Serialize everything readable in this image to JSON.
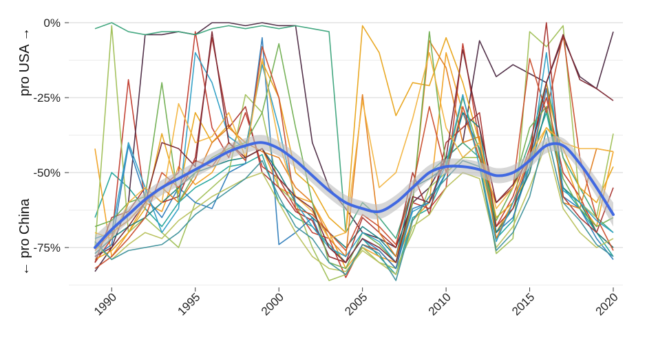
{
  "chart_data": {
    "type": "line",
    "title": "",
    "xlabel": "",
    "ylabel_top": "pro USA →",
    "ylabel_bottom": "← pro China",
    "xlim": [
      1989,
      2020
    ],
    "ylim": [
      -87.5,
      0
    ],
    "x_ticks": [
      1990,
      1995,
      2000,
      2005,
      2010,
      2015,
      2020
    ],
    "x_tick_labels": [
      "1990",
      "1995",
      "2000",
      "2005",
      "2010",
      "2015",
      "2020"
    ],
    "y_ticks": [
      0,
      -25,
      -50,
      -75
    ],
    "y_tick_labels": [
      "0%",
      "-25%",
      "-50%",
      "-75%"
    ],
    "y_minor_grid": [
      -12.5,
      -37.5,
      -62.5,
      -87.5
    ],
    "grid": true,
    "x": [
      1989,
      1990,
      1991,
      1992,
      1993,
      1994,
      1995,
      1996,
      1997,
      1998,
      1999,
      2000,
      2001,
      2002,
      2003,
      2004,
      2005,
      2006,
      2007,
      2008,
      2009,
      2010,
      2011,
      2012,
      2013,
      2014,
      2015,
      2016,
      2017,
      2018,
      2019,
      2020
    ],
    "trend": {
      "name": "smoothed trend",
      "color": "#4169e1",
      "band_color": "#bdbdbd",
      "values": [
        -75,
        -69,
        -64,
        -59,
        -55,
        -52,
        -49,
        -46,
        -43,
        -41,
        -40,
        -42,
        -46,
        -51,
        -56,
        -60,
        -62,
        -63,
        -60,
        -55,
        -50,
        -48,
        -48,
        -49,
        -51,
        -50,
        -46,
        -41,
        -41,
        -47,
        -55,
        -64
      ],
      "ci_halfwidth": [
        4,
        3,
        2.5,
        2.5,
        2.5,
        2.5,
        2.5,
        2.5,
        2.5,
        2.5,
        2.5,
        2.5,
        2.5,
        2.5,
        2.5,
        2.5,
        2.5,
        2.5,
        2.5,
        2.5,
        2.5,
        2.5,
        2.5,
        2.5,
        2.5,
        2.5,
        2.5,
        2.5,
        2.5,
        2.5,
        3,
        4
      ]
    },
    "series": [
      {
        "color": "#1fa39a",
        "values": [
          -65,
          -50,
          -55,
          -62,
          -68,
          -60,
          -55,
          -52,
          -48,
          -47,
          -44,
          -60,
          -65,
          -68,
          -74,
          -80,
          -72,
          -78,
          -84,
          -65,
          -62,
          -50,
          -45,
          -40,
          -72,
          -66,
          -45,
          -30,
          -55,
          -62,
          -70,
          -78
        ]
      },
      {
        "color": "#f0a020",
        "values": [
          -42,
          -78,
          -70,
          -60,
          -63,
          -48,
          -54,
          -50,
          -40,
          -45,
          -42,
          -55,
          -58,
          -60,
          -70,
          -82,
          -75,
          -78,
          -80,
          -66,
          -60,
          -10,
          -30,
          -45,
          -70,
          -60,
          -50,
          -22,
          -45,
          -60,
          -68,
          -43
        ]
      },
      {
        "color": "#c0392b",
        "values": [
          -80,
          -72,
          -19,
          -60,
          -55,
          -50,
          -3,
          -35,
          -45,
          -30,
          -48,
          -52,
          -62,
          -70,
          -72,
          -85,
          -74,
          -76,
          -82,
          -60,
          -62,
          -55,
          -7,
          -40,
          -68,
          -58,
          -42,
          -25,
          -50,
          -58,
          -70,
          -75
        ]
      },
      {
        "color": "#4a2740",
        "values": [
          -83,
          -75,
          -60,
          -4,
          -4,
          -3,
          -4,
          0,
          0,
          -1,
          0,
          -1,
          -1,
          -40,
          -55,
          -62,
          -70,
          -72,
          -75,
          -60,
          -55,
          -45,
          -40,
          -6,
          -18,
          -14,
          -17,
          -20,
          -5,
          -18,
          -22,
          -3
        ]
      },
      {
        "color": "#3aa37a",
        "values": [
          -2,
          0,
          -3,
          -4,
          -3,
          -3,
          -4,
          -2,
          -1,
          -2,
          -1,
          -2,
          -1,
          -2,
          -3,
          -70,
          -60,
          -65,
          -72,
          -55,
          -50,
          -45,
          -40,
          -45,
          -60,
          -55,
          -40,
          -20,
          -45,
          -55,
          -65,
          -70
        ]
      },
      {
        "color": "#9fbf55",
        "values": [
          -75,
          -1,
          -70,
          -65,
          -70,
          -75,
          -60,
          -55,
          -50,
          -24,
          -30,
          -55,
          -60,
          -75,
          -86,
          -84,
          -75,
          -80,
          -82,
          -70,
          -55,
          -50,
          -45,
          -45,
          -77,
          -72,
          -3,
          -8,
          -1,
          -60,
          -65,
          -37
        ]
      },
      {
        "color": "#2b7bb9",
        "values": [
          -78,
          -74,
          -41,
          -58,
          -65,
          -55,
          -60,
          -62,
          -50,
          -47,
          -5,
          -74,
          -70,
          -65,
          -78,
          -80,
          -72,
          -76,
          -82,
          -62,
          -60,
          -50,
          -30,
          -42,
          -70,
          -65,
          -48,
          -22,
          -58,
          -62,
          -72,
          -79
        ]
      },
      {
        "color": "#e8a317",
        "values": [
          -79,
          -76,
          -70,
          -62,
          -37,
          -57,
          -30,
          -40,
          -34,
          -42,
          -13,
          -25,
          -50,
          -55,
          -65,
          -70,
          -1,
          -10,
          -31,
          -20,
          -21,
          -5,
          -20,
          -40,
          -65,
          -60,
          -48,
          -35,
          -42,
          -55,
          -60,
          -48
        ]
      },
      {
        "color": "#17807e",
        "values": [
          -77,
          -72,
          -68,
          -65,
          -60,
          -55,
          -50,
          -48,
          -46,
          -45,
          -42,
          -50,
          -60,
          -65,
          -70,
          -75,
          -68,
          -72,
          -78,
          -55,
          -52,
          -48,
          -30,
          -35,
          -70,
          -62,
          -50,
          -28,
          -55,
          -60,
          -70,
          -75
        ]
      },
      {
        "color": "#a8322d",
        "values": [
          -80,
          -65,
          -63,
          -55,
          -60,
          -58,
          -45,
          -5,
          -35,
          -28,
          -50,
          -55,
          -63,
          -66,
          -78,
          -80,
          -65,
          -70,
          -75,
          -50,
          -64,
          -40,
          -35,
          -30,
          -68,
          -62,
          -45,
          0,
          -58,
          -65,
          -70,
          -55
        ]
      },
      {
        "color": "#e07b1a",
        "values": [
          -76,
          -70,
          -66,
          -60,
          -55,
          -60,
          -52,
          -40,
          -35,
          -40,
          -43,
          -45,
          -55,
          -60,
          -72,
          -78,
          -24,
          -70,
          -78,
          -60,
          -6,
          -15,
          -40,
          -38,
          -72,
          -60,
          -44,
          -20,
          -60,
          -62,
          -42,
          -43
        ]
      },
      {
        "color": "#6fae4f",
        "values": [
          -68,
          -66,
          -60,
          -58,
          -20,
          -60,
          -50,
          -45,
          -42,
          -40,
          -30,
          -7,
          -35,
          -60,
          -80,
          -82,
          -70,
          -74,
          -80,
          -60,
          -3,
          -48,
          -25,
          -43,
          -66,
          -55,
          -35,
          -28,
          -52,
          -62,
          -68,
          -65
        ]
      },
      {
        "color": "#c94b2a",
        "values": [
          -82,
          -78,
          -72,
          -65,
          -50,
          -55,
          -46,
          -48,
          -40,
          -46,
          -8,
          -25,
          -62,
          -64,
          -70,
          -76,
          -64,
          -68,
          -74,
          -55,
          -28,
          -50,
          -28,
          -45,
          -60,
          -55,
          -12,
          -30,
          -4,
          -45,
          -65,
          -76
        ]
      },
      {
        "color": "#2a9dc4",
        "values": [
          -72,
          -70,
          -40,
          -55,
          -70,
          -62,
          -10,
          -20,
          -38,
          -42,
          -14,
          -35,
          -60,
          -68,
          -75,
          -78,
          -70,
          -73,
          -80,
          -63,
          -60,
          -47,
          -24,
          -48,
          -73,
          -60,
          -48,
          -10,
          -56,
          -60,
          -66,
          -70
        ]
      },
      {
        "color": "#f2b33d",
        "values": [
          -70,
          -72,
          -60,
          -55,
          -60,
          -27,
          -40,
          -38,
          -30,
          -45,
          -12,
          -40,
          -58,
          -63,
          -72,
          -70,
          -26,
          -55,
          -50,
          -32,
          -10,
          -35,
          -45,
          -40,
          -62,
          -55,
          -44,
          -35,
          -40,
          -42,
          -42,
          -43
        ]
      },
      {
        "color": "#7a2530",
        "values": [
          -78,
          -75,
          -68,
          -60,
          -40,
          -42,
          -48,
          -3,
          -40,
          -45,
          -42,
          -52,
          -58,
          -62,
          -75,
          -80,
          -72,
          -75,
          -80,
          -58,
          -60,
          -45,
          -9,
          -35,
          -60,
          -54,
          -45,
          -20,
          -4,
          -19,
          -22,
          -26
        ]
      },
      {
        "color": "#b7c05a",
        "values": [
          -74,
          -79,
          -74,
          -70,
          -72,
          -66,
          -62,
          -58,
          -55,
          -52,
          -50,
          -60,
          -70,
          -78,
          -82,
          -83,
          -76,
          -80,
          -84,
          -68,
          -64,
          -55,
          -50,
          -52,
          -75,
          -68,
          -55,
          -40,
          -62,
          -70,
          -75,
          -72
        ]
      },
      {
        "color": "#3b8f9a",
        "values": [
          -73,
          -79,
          -76,
          -75,
          -74,
          -70,
          -64,
          -60,
          -56,
          -52,
          -46,
          -58,
          -68,
          -72,
          -80,
          -84,
          -74,
          -77,
          -86,
          -66,
          -58,
          -52,
          -46,
          -48,
          -76,
          -70,
          -58,
          -36,
          -60,
          -66,
          -74,
          -78
        ]
      }
    ]
  }
}
